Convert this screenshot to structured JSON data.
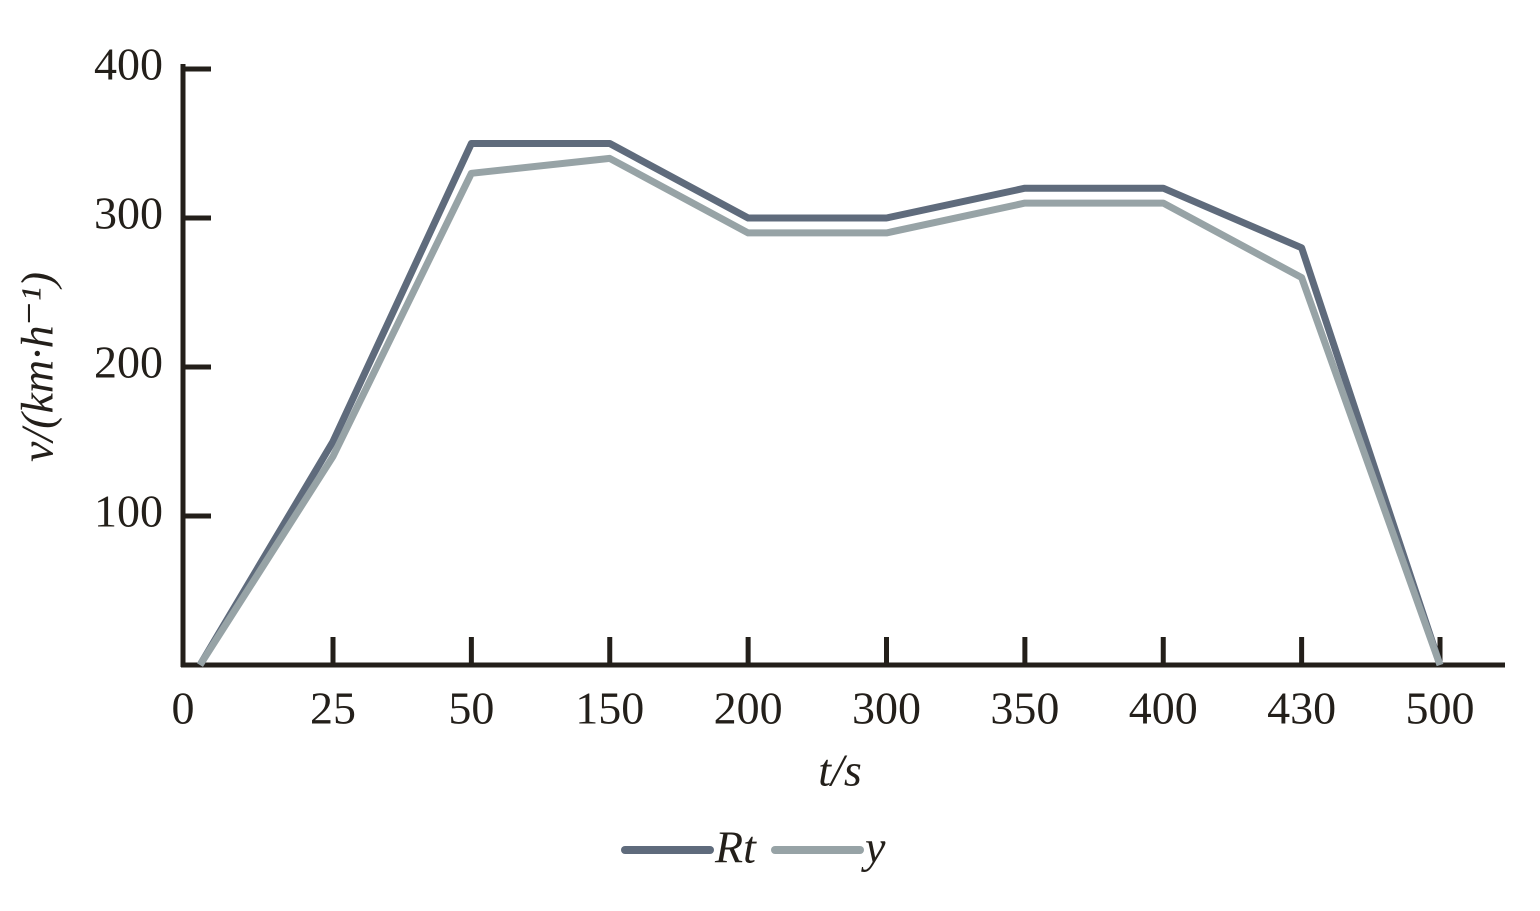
{
  "chart_data": {
    "type": "line",
    "x_label": "t/s",
    "y_label": "v/(km·h⁻¹)",
    "categories": [
      "0",
      "25",
      "50",
      "150",
      "200",
      "300",
      "350",
      "400",
      "430",
      "500"
    ],
    "series": [
      {
        "name": "Rt",
        "color": "#5f6b7c",
        "values": [
          0,
          150,
          350,
          350,
          300,
          300,
          320,
          320,
          280,
          0
        ]
      },
      {
        "name": "y",
        "color": "#97a3a6",
        "values": [
          0,
          140,
          330,
          340,
          290,
          290,
          310,
          310,
          260,
          0
        ]
      }
    ],
    "ylim": [
      0,
      400
    ],
    "yticks": [
      100,
      200,
      300,
      400
    ],
    "legend": "bottom"
  }
}
